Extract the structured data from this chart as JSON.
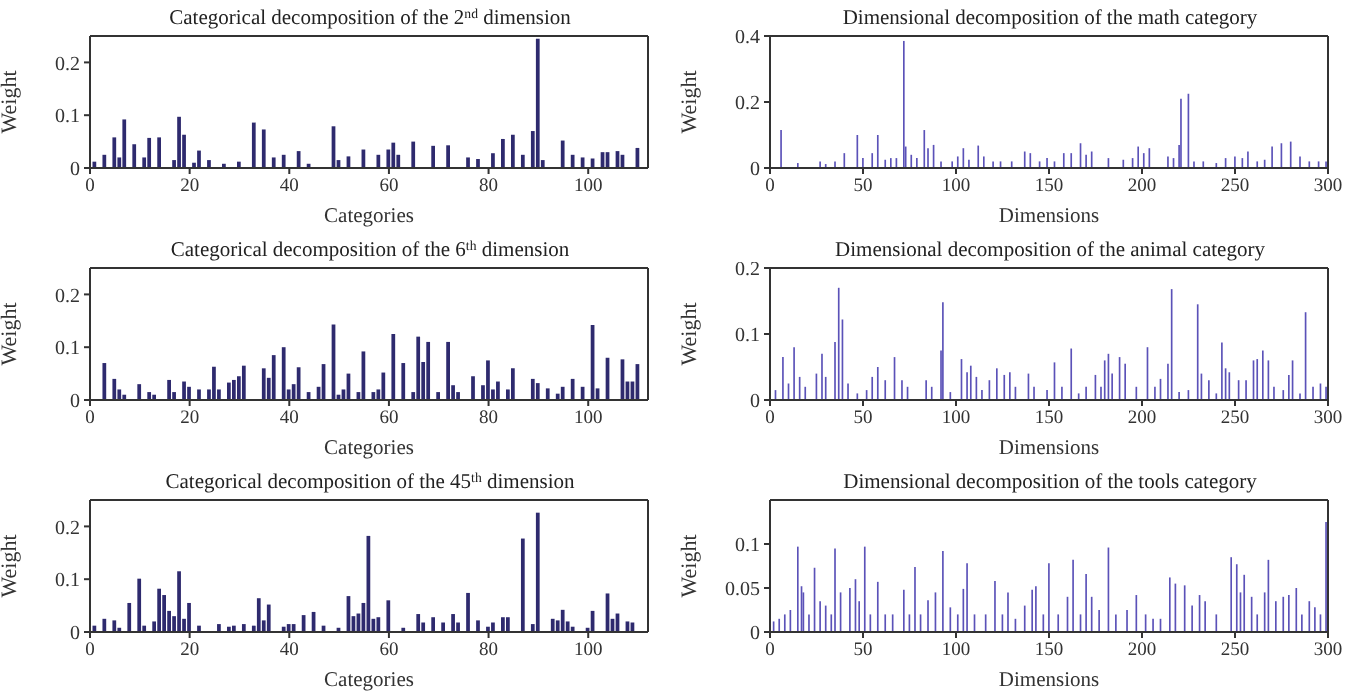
{
  "chart_data": [
    {
      "type": "bar",
      "title": "Categorical decomposition of the 2$^{nd}$ dimension",
      "xlabel": "Categories",
      "ylabel": "Weight",
      "color": "#2e2a6e",
      "xlim": [
        0,
        112
      ],
      "xticks": [
        0,
        20,
        40,
        60,
        80,
        100
      ],
      "ylim": [
        0,
        0.25
      ],
      "yticks": [
        0,
        0.1,
        0.2
      ],
      "x": [
        1,
        3,
        5,
        6,
        7,
        9,
        11,
        12,
        14,
        17,
        18,
        19,
        21,
        22,
        24,
        27,
        30,
        33,
        35,
        37,
        39,
        42,
        44,
        49,
        50,
        52,
        55,
        58,
        60,
        61,
        62,
        65,
        69,
        72,
        76,
        78,
        81,
        83,
        85,
        87,
        89,
        90,
        91,
        95,
        97,
        99,
        101,
        103,
        104,
        106,
        107,
        110
      ],
      "values": [
        0.012,
        0.025,
        0.058,
        0.02,
        0.092,
        0.045,
        0.02,
        0.057,
        0.058,
        0.015,
        0.097,
        0.063,
        0.01,
        0.033,
        0.015,
        0.008,
        0.012,
        0.086,
        0.073,
        0.02,
        0.025,
        0.032,
        0.008,
        0.079,
        0.015,
        0.022,
        0.035,
        0.025,
        0.035,
        0.048,
        0.025,
        0.05,
        0.042,
        0.043,
        0.02,
        0.017,
        0.028,
        0.055,
        0.063,
        0.025,
        0.07,
        0.245,
        0.015,
        0.052,
        0.025,
        0.02,
        0.018,
        0.03,
        0.03,
        0.032,
        0.025,
        0.038
      ]
    },
    {
      "type": "bar",
      "title": "Dimensional decomposition of the math category",
      "xlabel": "Dimensions",
      "ylabel": "Weight",
      "color": "#5b52b8",
      "xlim": [
        0,
        300
      ],
      "xticks": [
        0,
        50,
        100,
        150,
        200,
        250,
        300
      ],
      "ylim": [
        0,
        0.4
      ],
      "yticks": [
        0,
        0.2,
        0.4
      ],
      "x": [
        6,
        15,
        27,
        30,
        35,
        40,
        47,
        50,
        55,
        58,
        62,
        65,
        68,
        72,
        73,
        76,
        79,
        83,
        85,
        88,
        92,
        98,
        101,
        104,
        107,
        112,
        115,
        120,
        124,
        130,
        137,
        140,
        145,
        149,
        153,
        158,
        162,
        167,
        170,
        173,
        182,
        190,
        195,
        198,
        201,
        204,
        214,
        217,
        220,
        221,
        225,
        228,
        233,
        240,
        245,
        250,
        254,
        257,
        262,
        266,
        270,
        275,
        280,
        285,
        290,
        295,
        299
      ],
      "values": [
        0.115,
        0.015,
        0.02,
        0.012,
        0.02,
        0.045,
        0.1,
        0.03,
        0.045,
        0.1,
        0.025,
        0.03,
        0.03,
        0.385,
        0.065,
        0.04,
        0.03,
        0.115,
        0.06,
        0.07,
        0.02,
        0.02,
        0.035,
        0.06,
        0.025,
        0.068,
        0.035,
        0.02,
        0.02,
        0.02,
        0.05,
        0.045,
        0.02,
        0.03,
        0.02,
        0.045,
        0.045,
        0.075,
        0.04,
        0.05,
        0.03,
        0.025,
        0.03,
        0.065,
        0.045,
        0.06,
        0.035,
        0.03,
        0.07,
        0.21,
        0.225,
        0.02,
        0.02,
        0.015,
        0.03,
        0.035,
        0.03,
        0.05,
        0.02,
        0.025,
        0.065,
        0.075,
        0.08,
        0.035,
        0.02,
        0.02,
        0.02
      ]
    },
    {
      "type": "bar",
      "title": "Categorical decomposition of the 6$^{th}$ dimension",
      "xlabel": "Categories",
      "ylabel": "Weight",
      "color": "#2e2a6e",
      "xlim": [
        0,
        112
      ],
      "xticks": [
        0,
        20,
        40,
        60,
        80,
        100
      ],
      "ylim": [
        0,
        0.25
      ],
      "yticks": [
        0,
        0.1,
        0.2
      ],
      "x": [
        3,
        5,
        6,
        7,
        10,
        12,
        13,
        16,
        17,
        19,
        20,
        22,
        24,
        25,
        26,
        28,
        29,
        30,
        31,
        35,
        36,
        37,
        39,
        40,
        41,
        42,
        44,
        46,
        47,
        49,
        50,
        51,
        52,
        54,
        55,
        57,
        58,
        59,
        61,
        63,
        65,
        66,
        67,
        68,
        70,
        72,
        73,
        74,
        77,
        79,
        80,
        81,
        82,
        84,
        85,
        89,
        90,
        92,
        94,
        95,
        97,
        99,
        101,
        102,
        104,
        107,
        108,
        109,
        110
      ],
      "values": [
        0.07,
        0.04,
        0.02,
        0.01,
        0.03,
        0.015,
        0.01,
        0.038,
        0.015,
        0.035,
        0.025,
        0.02,
        0.02,
        0.063,
        0.02,
        0.033,
        0.038,
        0.045,
        0.065,
        0.06,
        0.042,
        0.085,
        0.1,
        0.02,
        0.03,
        0.062,
        0.015,
        0.025,
        0.068,
        0.143,
        0.01,
        0.02,
        0.05,
        0.015,
        0.092,
        0.015,
        0.02,
        0.052,
        0.125,
        0.07,
        0.015,
        0.12,
        0.072,
        0.11,
        0.015,
        0.11,
        0.028,
        0.015,
        0.045,
        0.028,
        0.075,
        0.02,
        0.035,
        0.02,
        0.06,
        0.04,
        0.032,
        0.022,
        0.012,
        0.025,
        0.04,
        0.025,
        0.142,
        0.022,
        0.08,
        0.077,
        0.035,
        0.035,
        0.068
      ]
    },
    {
      "type": "bar",
      "title": "Dimensional decomposition of the animal category",
      "xlabel": "Dimensions",
      "ylabel": "Weight",
      "color": "#5b52b8",
      "xlim": [
        0,
        300
      ],
      "xticks": [
        0,
        50,
        100,
        150,
        200,
        250,
        300
      ],
      "ylim": [
        0,
        0.2
      ],
      "yticks": [
        0,
        0.1,
        0.2
      ],
      "x": [
        3,
        7,
        10,
        13,
        16,
        19,
        25,
        28,
        30,
        35,
        37,
        39,
        42,
        47,
        52,
        55,
        58,
        62,
        67,
        71,
        74,
        84,
        87,
        92,
        93,
        97,
        103,
        106,
        108,
        111,
        114,
        118,
        122,
        126,
        129,
        132,
        139,
        142,
        149,
        153,
        157,
        162,
        166,
        170,
        175,
        178,
        180,
        182,
        184,
        188,
        191,
        197,
        203,
        207,
        210,
        214,
        216,
        220,
        225,
        230,
        232,
        236,
        240,
        243,
        245,
        247,
        252,
        256,
        260,
        262,
        265,
        268,
        271,
        276,
        279,
        281,
        285,
        288,
        292,
        296,
        299
      ],
      "values": [
        0.015,
        0.065,
        0.025,
        0.08,
        0.035,
        0.02,
        0.04,
        0.07,
        0.035,
        0.088,
        0.17,
        0.122,
        0.025,
        0.01,
        0.015,
        0.035,
        0.05,
        0.03,
        0.065,
        0.03,
        0.02,
        0.03,
        0.02,
        0.075,
        0.148,
        0.012,
        0.062,
        0.042,
        0.052,
        0.035,
        0.015,
        0.03,
        0.048,
        0.038,
        0.042,
        0.02,
        0.04,
        0.02,
        0.015,
        0.057,
        0.02,
        0.078,
        0.01,
        0.02,
        0.038,
        0.02,
        0.06,
        0.07,
        0.04,
        0.065,
        0.055,
        0.02,
        0.08,
        0.02,
        0.032,
        0.055,
        0.168,
        0.012,
        0.015,
        0.145,
        0.04,
        0.03,
        0.01,
        0.087,
        0.048,
        0.042,
        0.03,
        0.03,
        0.06,
        0.062,
        0.075,
        0.06,
        0.02,
        0.015,
        0.038,
        0.06,
        0.01,
        0.133,
        0.02,
        0.025,
        0.02
      ]
    },
    {
      "type": "bar",
      "title": "Categorical decomposition of the 45$^{th}$ dimension",
      "xlabel": "Categories",
      "ylabel": "Weight",
      "color": "#2e2a6e",
      "xlim": [
        0,
        112
      ],
      "xticks": [
        0,
        20,
        40,
        60,
        80,
        100
      ],
      "ylim": [
        0,
        0.25
      ],
      "yticks": [
        0,
        0.1,
        0.2
      ],
      "x": [
        1,
        3,
        5,
        6,
        8,
        10,
        11,
        13,
        14,
        15,
        16,
        17,
        18,
        19,
        20,
        22,
        26,
        28,
        29,
        31,
        33,
        34,
        35,
        36,
        39,
        40,
        41,
        43,
        45,
        47,
        50,
        52,
        53,
        54,
        55,
        56,
        57,
        58,
        60,
        63,
        66,
        67,
        69,
        71,
        73,
        74,
        76,
        78,
        80,
        81,
        83,
        84,
        87,
        89,
        90,
        93,
        94,
        95,
        96,
        97,
        100,
        101,
        104,
        105,
        106,
        108,
        109
      ],
      "values": [
        0.012,
        0.025,
        0.022,
        0.008,
        0.055,
        0.101,
        0.012,
        0.02,
        0.082,
        0.07,
        0.04,
        0.03,
        0.115,
        0.025,
        0.055,
        0.012,
        0.015,
        0.01,
        0.012,
        0.015,
        0.012,
        0.064,
        0.022,
        0.052,
        0.01,
        0.015,
        0.015,
        0.032,
        0.038,
        0.012,
        0.008,
        0.068,
        0.03,
        0.035,
        0.055,
        0.182,
        0.025,
        0.028,
        0.06,
        0.008,
        0.034,
        0.018,
        0.028,
        0.018,
        0.034,
        0.018,
        0.074,
        0.022,
        0.01,
        0.018,
        0.028,
        0.028,
        0.177,
        0.015,
        0.226,
        0.025,
        0.022,
        0.042,
        0.02,
        0.01,
        0.008,
        0.04,
        0.073,
        0.025,
        0.035,
        0.02,
        0.018
      ]
    },
    {
      "type": "bar",
      "title": "Dimensional decomposition of the tools category",
      "xlabel": "Dimensions",
      "ylabel": "Weight",
      "color": "#5b52b8",
      "xlim": [
        0,
        300
      ],
      "xticks": [
        0,
        50,
        100,
        150,
        200,
        250,
        300
      ],
      "ylim": [
        0,
        0.15
      ],
      "yticks": [
        0,
        0.05,
        0.1
      ],
      "x": [
        2,
        5,
        8,
        11,
        15,
        17,
        18,
        21,
        24,
        27,
        30,
        33,
        35,
        38,
        43,
        46,
        48,
        51,
        54,
        58,
        62,
        66,
        72,
        75,
        78,
        81,
        85,
        89,
        93,
        97,
        101,
        104,
        106,
        110,
        116,
        121,
        125,
        128,
        132,
        137,
        141,
        143,
        147,
        150,
        155,
        160,
        163,
        167,
        170,
        173,
        177,
        182,
        186,
        192,
        197,
        202,
        206,
        210,
        215,
        218,
        223,
        227,
        231,
        234,
        240,
        248,
        251,
        253,
        255,
        259,
        262,
        266,
        268,
        272,
        276,
        279,
        283,
        286,
        290,
        293,
        296,
        299
      ],
      "values": [
        0.012,
        0.015,
        0.02,
        0.025,
        0.097,
        0.052,
        0.045,
        0.02,
        0.073,
        0.035,
        0.03,
        0.02,
        0.095,
        0.045,
        0.05,
        0.06,
        0.035,
        0.097,
        0.02,
        0.057,
        0.02,
        0.02,
        0.048,
        0.02,
        0.074,
        0.02,
        0.036,
        0.045,
        0.092,
        0.028,
        0.02,
        0.049,
        0.078,
        0.02,
        0.02,
        0.058,
        0.02,
        0.045,
        0.015,
        0.03,
        0.048,
        0.052,
        0.02,
        0.078,
        0.02,
        0.04,
        0.082,
        0.02,
        0.066,
        0.04,
        0.025,
        0.096,
        0.02,
        0.025,
        0.042,
        0.02,
        0.015,
        0.015,
        0.062,
        0.055,
        0.053,
        0.03,
        0.042,
        0.035,
        0.02,
        0.085,
        0.077,
        0.045,
        0.065,
        0.04,
        0.02,
        0.045,
        0.082,
        0.035,
        0.04,
        0.042,
        0.05,
        0.02,
        0.035,
        0.028,
        0.02,
        0.125
      ]
    }
  ]
}
